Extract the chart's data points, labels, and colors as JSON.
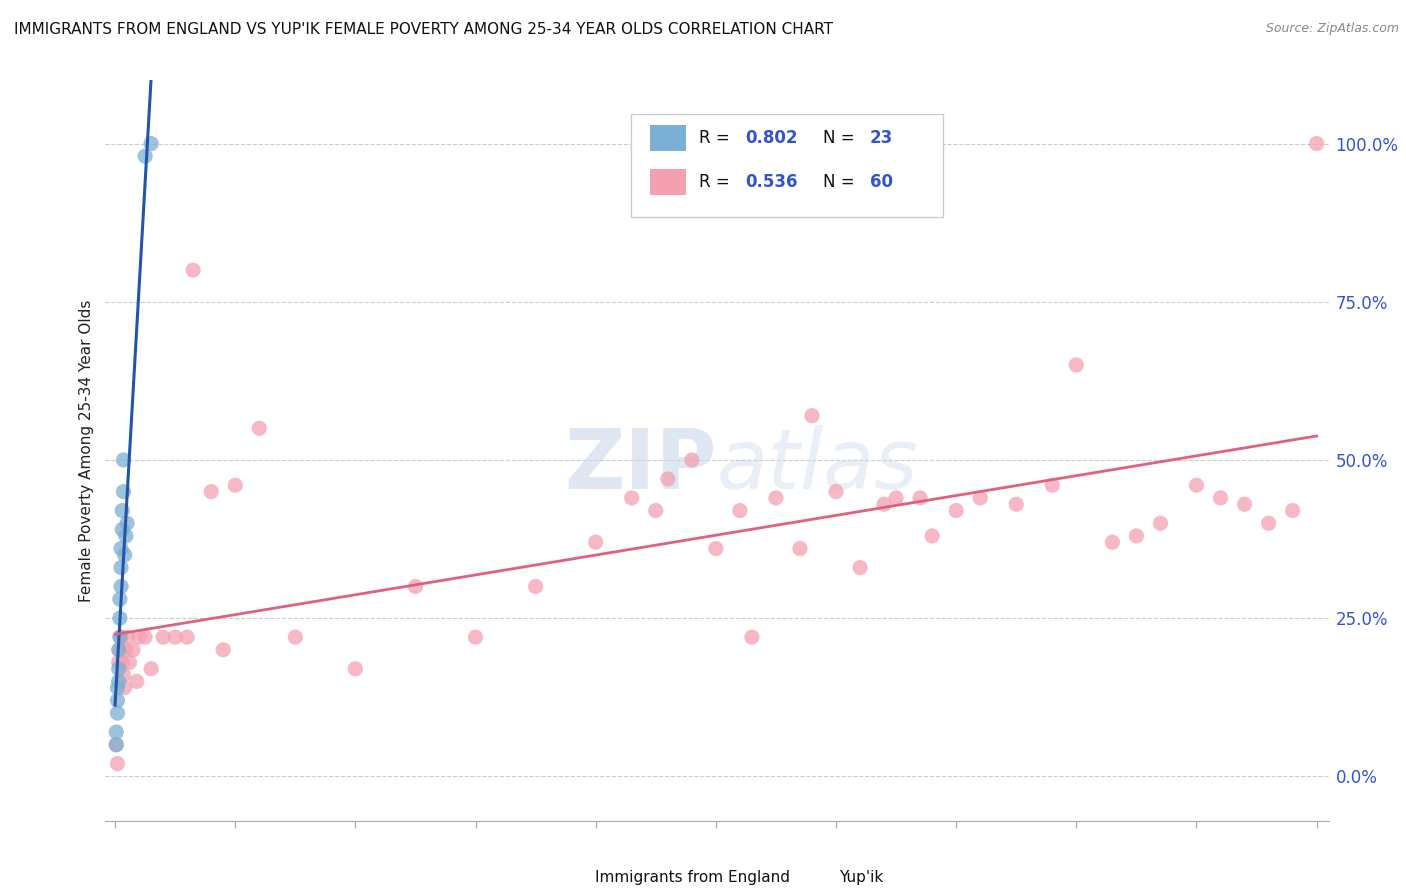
{
  "title": "IMMIGRANTS FROM ENGLAND VS YUP'IK FEMALE POVERTY AMONG 25-34 YEAR OLDS CORRELATION CHART",
  "source": "Source: ZipAtlas.com",
  "ylabel": "Female Poverty Among 25-34 Year Olds",
  "legend1_label": "Immigrants from England",
  "legend2_label": "Yup'ik",
  "R1": "0.802",
  "N1": "23",
  "R2": "0.536",
  "N2": "60",
  "color_blue": "#7BAFD4",
  "color_pink": "#F4A0B0",
  "line_blue": "#2255AA",
  "line_pink": "#E06080",
  "watermark_zip": "ZIP",
  "watermark_atlas": "atlas",
  "blue_x": [
    0.001,
    0.001,
    0.002,
    0.002,
    0.002,
    0.003,
    0.003,
    0.003,
    0.004,
    0.004,
    0.004,
    0.005,
    0.005,
    0.005,
    0.006,
    0.006,
    0.007,
    0.007,
    0.008,
    0.009,
    0.01,
    0.025,
    0.03
  ],
  "blue_y": [
    0.05,
    0.07,
    0.1,
    0.12,
    0.14,
    0.15,
    0.17,
    0.2,
    0.22,
    0.25,
    0.28,
    0.3,
    0.33,
    0.36,
    0.39,
    0.42,
    0.45,
    0.5,
    0.35,
    0.38,
    0.4,
    0.98,
    1.0
  ],
  "pink_x": [
    0.001,
    0.002,
    0.003,
    0.004,
    0.005,
    0.006,
    0.007,
    0.008,
    0.009,
    0.01,
    0.012,
    0.015,
    0.018,
    0.02,
    0.025,
    0.03,
    0.04,
    0.05,
    0.06,
    0.065,
    0.08,
    0.09,
    0.1,
    0.12,
    0.15,
    0.2,
    0.25,
    0.3,
    0.35,
    0.4,
    0.45,
    0.48,
    0.5,
    0.52,
    0.55,
    0.57,
    0.6,
    0.62,
    0.65,
    0.67,
    0.7,
    0.72,
    0.75,
    0.78,
    0.8,
    0.83,
    0.85,
    0.87,
    0.9,
    0.92,
    0.94,
    0.96,
    0.98,
    1.0,
    0.43,
    0.46,
    0.53,
    0.58,
    0.64,
    0.68
  ],
  "pink_y": [
    0.05,
    0.02,
    0.18,
    0.2,
    0.22,
    0.18,
    0.16,
    0.14,
    0.2,
    0.22,
    0.18,
    0.2,
    0.15,
    0.22,
    0.22,
    0.17,
    0.22,
    0.22,
    0.22,
    0.8,
    0.45,
    0.2,
    0.46,
    0.55,
    0.22,
    0.17,
    0.3,
    0.22,
    0.3,
    0.37,
    0.42,
    0.5,
    0.36,
    0.42,
    0.44,
    0.36,
    0.45,
    0.33,
    0.44,
    0.44,
    0.42,
    0.44,
    0.43,
    0.46,
    0.65,
    0.37,
    0.38,
    0.4,
    0.46,
    0.44,
    0.43,
    0.4,
    0.42,
    1.0,
    0.44,
    0.47,
    0.22,
    0.57,
    0.43,
    0.38
  ]
}
